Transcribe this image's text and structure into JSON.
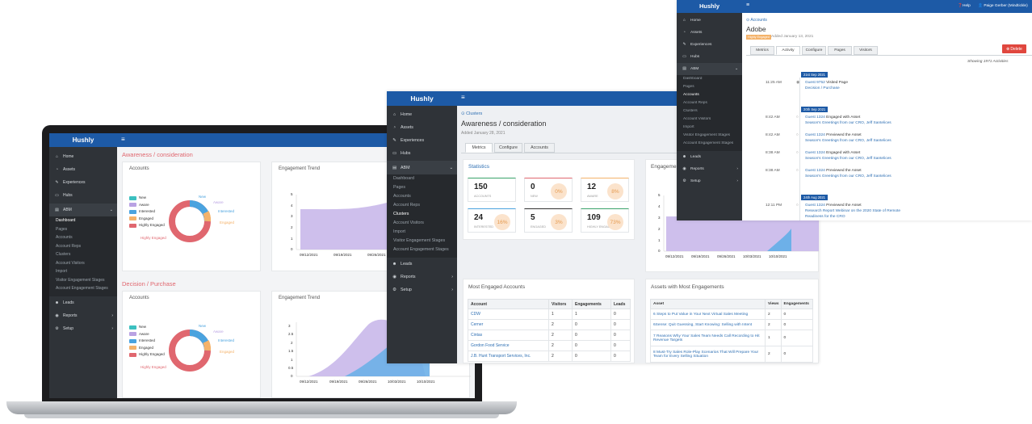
{
  "brand": "Hushly",
  "nav": {
    "main": [
      "Home",
      "Assets",
      "Experiences",
      "Hubs"
    ],
    "abm": "ABM",
    "abm_sub": [
      "Dashboard",
      "Pages",
      "Accounts",
      "Account Reps",
      "Clusters",
      "Account Visitors",
      "Import",
      "Visitor Engagement Stages",
      "Account Engagement Stages"
    ],
    "bottom": [
      "Leads",
      "Reports",
      "Setup"
    ]
  },
  "laptop": {
    "section1_title": "Awareness / consideration",
    "section2_title": "Decision / Purchase",
    "accounts_card": "Accounts",
    "trend_card": "Engagement Trend",
    "legend": [
      "New",
      "Aware",
      "Interested",
      "Engaged",
      "Highly Engaged"
    ],
    "donut_labels": {
      "new": "New",
      "aware": "Aware",
      "interested": "Interested",
      "engaged": "Engaged",
      "highly": "Highly Engaged"
    },
    "trend1_dates": [
      "09/12/2021",
      "09/19/2021",
      "09/26/2021"
    ],
    "trend1_y": [
      "0",
      "1",
      "2",
      "3",
      "4",
      "5"
    ],
    "trend2_dates": [
      "09/12/2021",
      "09/19/2021",
      "09/26/2021",
      "10/03/2021",
      "10/10/2021"
    ],
    "trend2_y": [
      "0",
      "0.5",
      "1",
      "1.5",
      "2",
      "2.5",
      "3"
    ]
  },
  "middle": {
    "breadcrumb": "Clusters",
    "title": "Awareness / consideration",
    "added": "Added January 28, 2021",
    "tabs": [
      "Metrics",
      "Configure",
      "Accounts"
    ],
    "statistics_title": "Statistics",
    "stats": [
      {
        "n": "150",
        "label": "Accounts",
        "pct": ""
      },
      {
        "n": "0",
        "label": "New",
        "pct": "0%"
      },
      {
        "n": "12",
        "label": "Aware",
        "pct": "8%"
      },
      {
        "n": "24",
        "label": "Interested",
        "pct": "16%"
      },
      {
        "n": "5",
        "label": "Engaged",
        "pct": "3%"
      },
      {
        "n": "109",
        "label": "Highly Engaged",
        "pct": "73%"
      }
    ],
    "trend_title": "Engagement Trend",
    "trend_y": [
      "0",
      "1",
      "2",
      "3",
      "4",
      "5"
    ],
    "trend_dates": [
      "09/12/2021",
      "09/19/2021",
      "09/26/2021",
      "10/03/2021",
      "10/10/2021"
    ],
    "most_engaged_title": "Most Engaged Accounts",
    "most_engaged_cols": [
      "Account",
      "Visitors",
      "Engagements",
      "Leads"
    ],
    "most_engaged_rows": [
      [
        "CDW",
        "1",
        "1",
        "0"
      ],
      [
        "Cerner",
        "2",
        "0",
        "0"
      ],
      [
        "Cintas",
        "2",
        "0",
        "0"
      ],
      [
        "Gordon Food Service",
        "2",
        "0",
        "0"
      ],
      [
        "J.B. Hunt Transport Services, Inc.",
        "2",
        "0",
        "0"
      ]
    ],
    "assets_title": "Assets with Most Engagements",
    "assets_cols": [
      "Asset",
      "Views",
      "Engagements"
    ],
    "assets_rows": [
      [
        "6 Steps to Put Value in Your Next Virtual Sales Meeting",
        "2",
        "0"
      ],
      [
        "6Sense: Quit Guessing, Start Knowing: Selling with Intent",
        "2",
        "0"
      ],
      [
        "7 Reasons Why Your Sales Team Needs Call Recording to Hit Revenue Targets",
        "1",
        "0"
      ],
      [
        "8 Must-Try Sales Role-Play Scenarios That Will Prepare Your Team for Every Selling Situation",
        "2",
        "0"
      ]
    ]
  },
  "right": {
    "help": "Help",
    "user": "Paige Gerber (Mindtickle)",
    "breadcrumb": "Accounts",
    "title": "Adobe",
    "badge": "Highly Engaged",
    "added": "Added January 13, 2021",
    "delete": "Delete",
    "tabs": [
      "Metrics",
      "Activity",
      "Configure",
      "Pages",
      "Visitors"
    ],
    "showing": "Showing 1971 Activities",
    "days": [
      {
        "date": "21st Sep 2021",
        "events": [
          {
            "time": "11:25 AM",
            "who": "Guest 9752",
            "action": "Visited Page",
            "item": "Decision / Purchase"
          }
        ]
      },
      {
        "date": "20th Sep 2021",
        "events": [
          {
            "time": "8:42 AM",
            "who": "Guest 1324",
            "action": "Engaged with Asset",
            "item": "Season's Greetings from our CRO, Jeff Santelices"
          },
          {
            "time": "8:42 AM",
            "who": "Guest 1324",
            "action": "Previewed the Asset",
            "item": "Season's Greetings from our CRO, Jeff Santelices"
          },
          {
            "time": "8:38 AM",
            "who": "Guest 1324",
            "action": "Engaged with Asset",
            "item": "Season's Greetings from our CRO, Jeff Santelices"
          },
          {
            "time": "8:38 AM",
            "who": "Guest 1324",
            "action": "Previewed the Asset",
            "item": "Season's Greetings from our CRO, Jeff Santelices"
          }
        ]
      },
      {
        "date": "24th Aug 2021",
        "events": [
          {
            "time": "12:11 PM",
            "who": "Guest 1324",
            "action": "Previewed the Asset",
            "item": "Research Report Webinar on the 2020 State of Remote Readiness for the CRO"
          }
        ]
      }
    ]
  },
  "colors": {
    "brand_blue": "#1d5aa6",
    "new": "#3cc0c0",
    "aware": "#b9a2e3",
    "interested": "#4aa3df",
    "engaged": "#f4b26a",
    "highly": "#e0676f",
    "section_title": "#e0676f"
  }
}
